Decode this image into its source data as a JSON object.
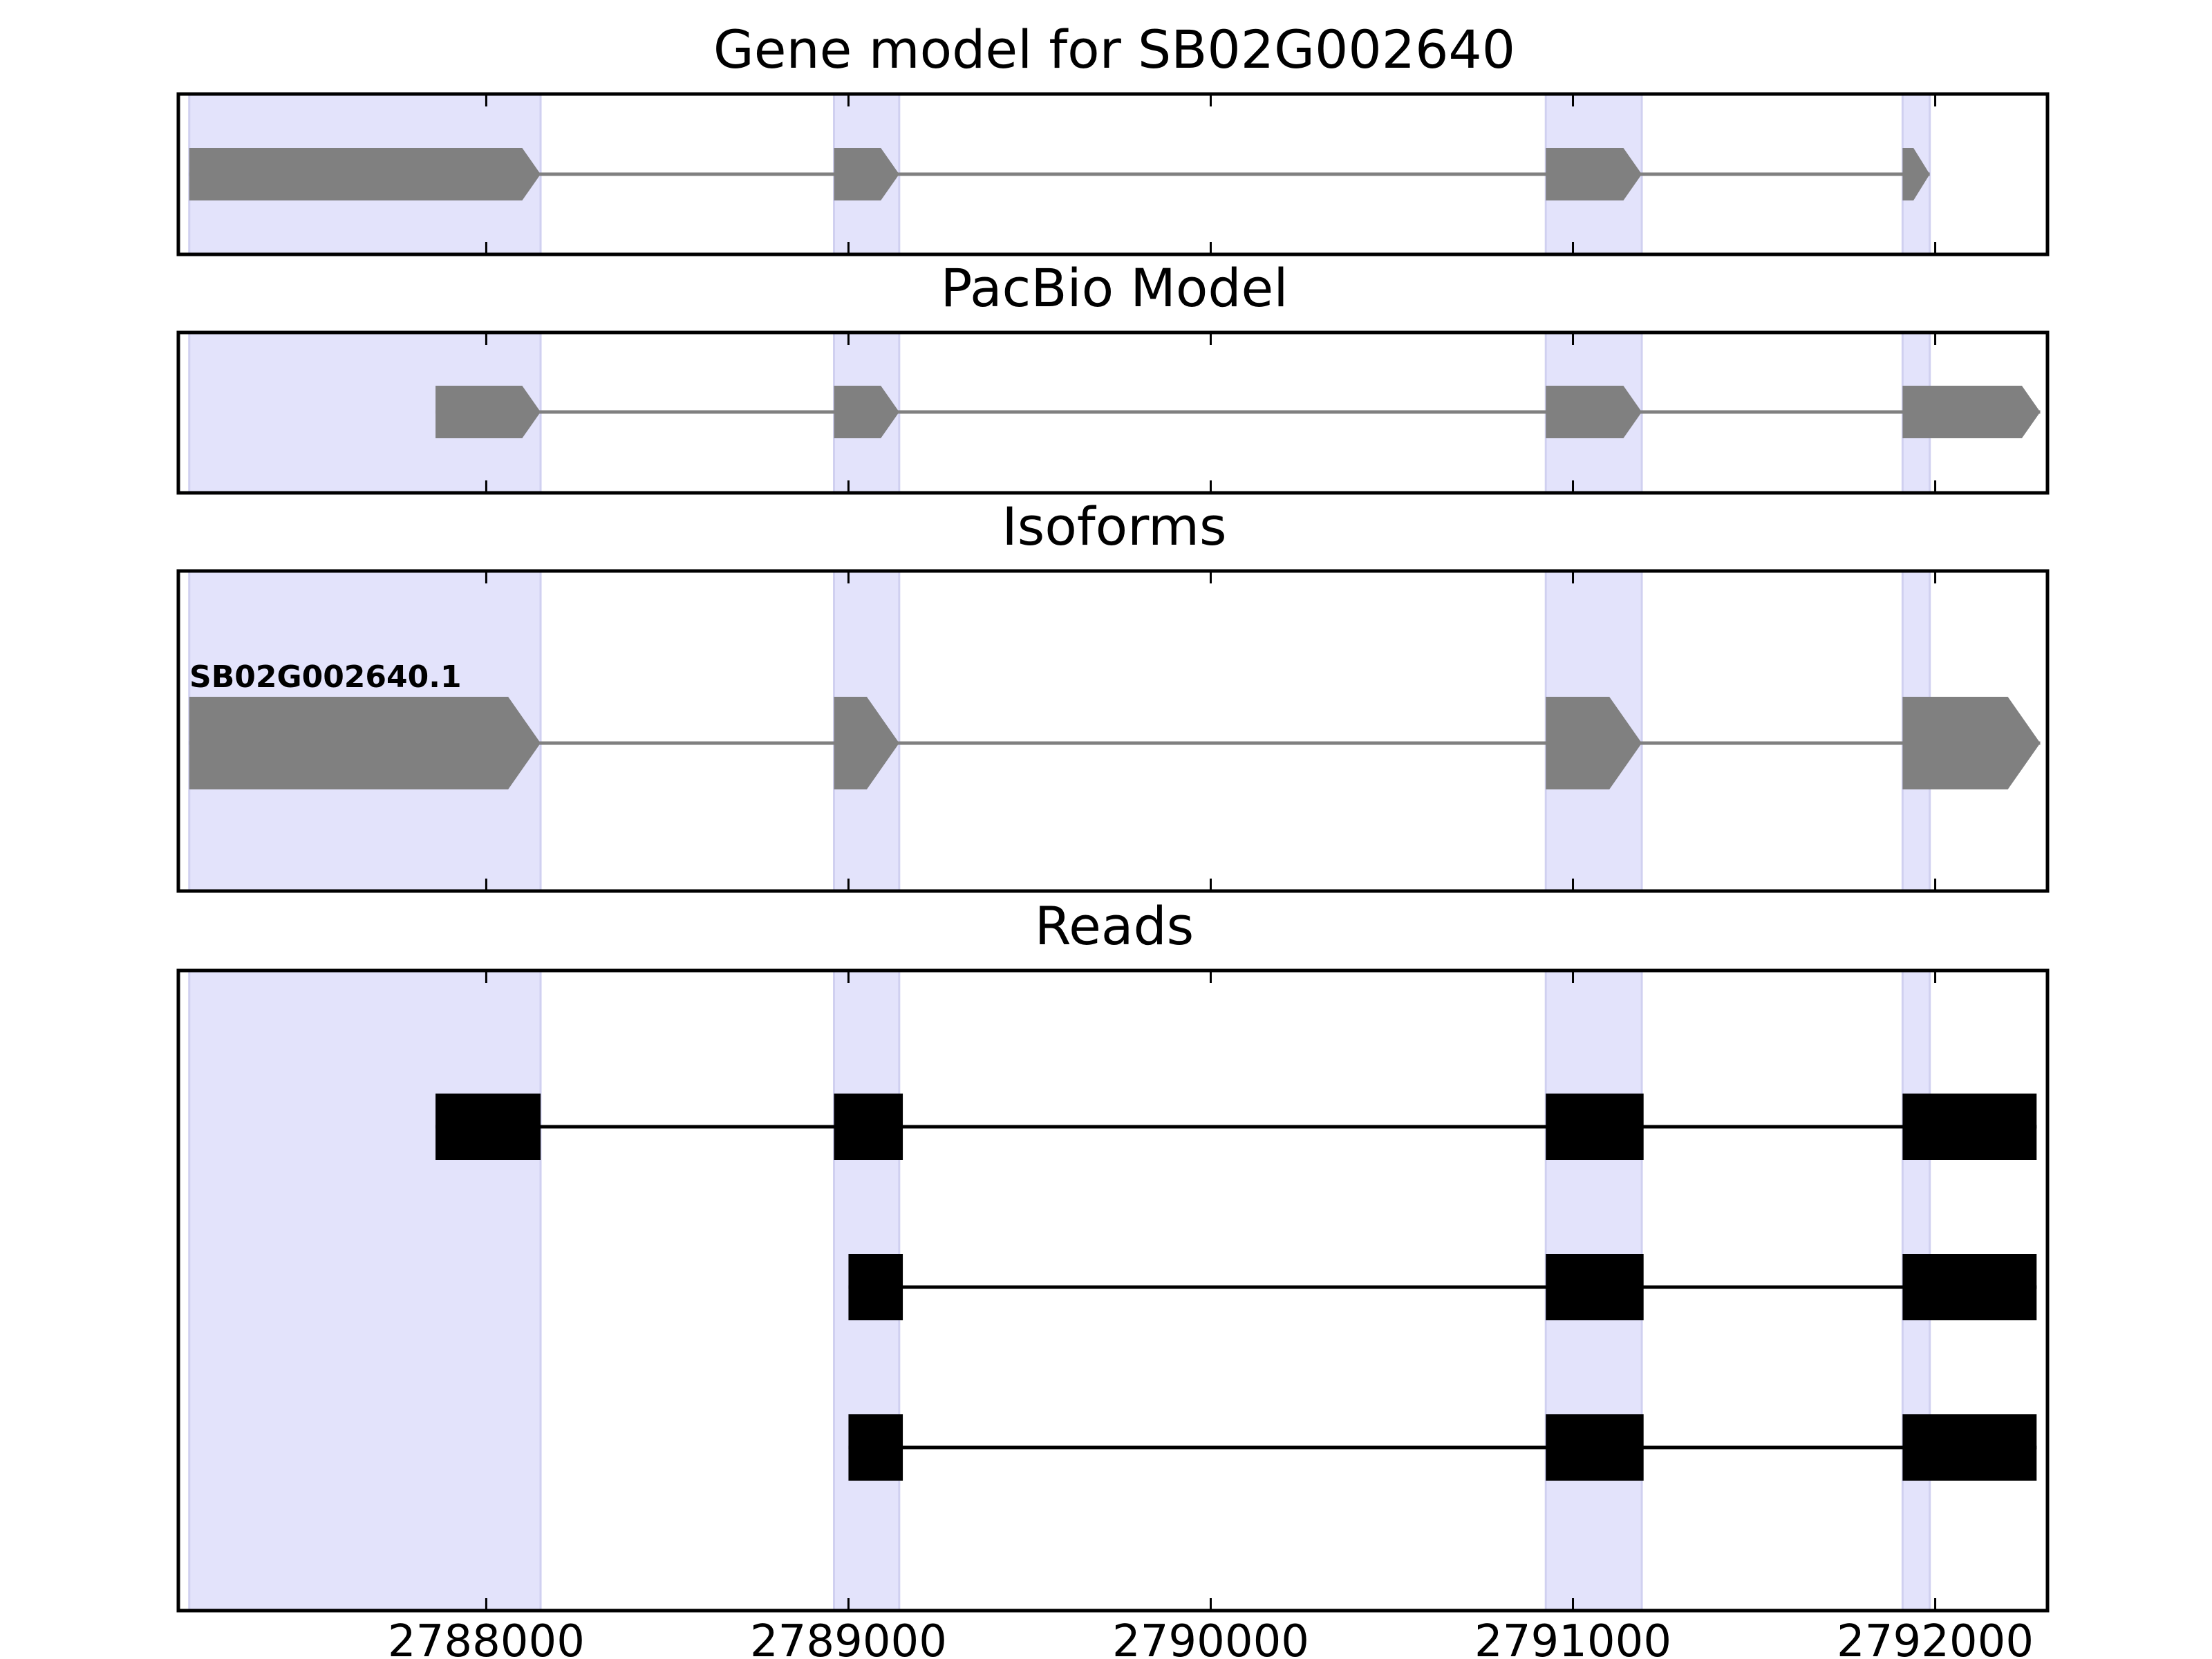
{
  "figure": {
    "highlight_color": "#e3e3fb",
    "highlight_edge_color": "#d0d0f0",
    "model_color": "#808080",
    "read_color": "#000000",
    "frame_color": "#000000"
  },
  "chart_data": {
    "type": "gene-structure",
    "xlim": [
      2787150,
      2792310
    ],
    "xticks": [
      {
        "value": 2788000,
        "label": "2788000"
      },
      {
        "value": 2789000,
        "label": "2789000"
      },
      {
        "value": 2790000,
        "label": "2790000"
      },
      {
        "value": 2791000,
        "label": "2791000"
      },
      {
        "value": 2792000,
        "label": "2792000"
      }
    ],
    "highlight_regions": [
      [
        2787180,
        2788150
      ],
      [
        2788960,
        2789140
      ],
      [
        2790925,
        2791190
      ],
      [
        2791910,
        2791985
      ]
    ],
    "panels": [
      {
        "id": "gene-model",
        "title": "Gene model for SB02G002640",
        "style": "arrow",
        "tracks": [
          {
            "label": "",
            "exons": [
              [
                2787180,
                2788150
              ],
              [
                2788960,
                2789140
              ],
              [
                2790925,
                2791190
              ],
              [
                2791910,
                2791985
              ]
            ]
          }
        ]
      },
      {
        "id": "pacbio-model",
        "title": "PacBio Model",
        "style": "arrow",
        "tracks": [
          {
            "label": "",
            "exons": [
              [
                2787860,
                2788150
              ],
              [
                2788960,
                2789140
              ],
              [
                2790925,
                2791190
              ],
              [
                2791910,
                2792290
              ]
            ]
          }
        ]
      },
      {
        "id": "isoforms",
        "title": "Isoforms",
        "style": "arrow-tall",
        "tracks": [
          {
            "label": "SB02G002640.1",
            "exons": [
              [
                2787180,
                2788150
              ],
              [
                2788960,
                2789140
              ],
              [
                2790925,
                2791190
              ],
              [
                2791910,
                2792290
              ]
            ]
          }
        ]
      },
      {
        "id": "reads",
        "title": "Reads",
        "style": "box",
        "tracks": [
          {
            "label": "",
            "exons": [
              [
                2787860,
                2788150
              ],
              [
                2788960,
                2789150
              ],
              [
                2790925,
                2791195
              ],
              [
                2791910,
                2792280
              ]
            ]
          },
          {
            "label": "",
            "exons": [
              [
                2789000,
                2789150
              ],
              [
                2790925,
                2791195
              ],
              [
                2791910,
                2792280
              ]
            ]
          },
          {
            "label": "",
            "exons": [
              [
                2789000,
                2789150
              ],
              [
                2790925,
                2791195
              ],
              [
                2791910,
                2792280
              ]
            ]
          }
        ]
      }
    ]
  }
}
